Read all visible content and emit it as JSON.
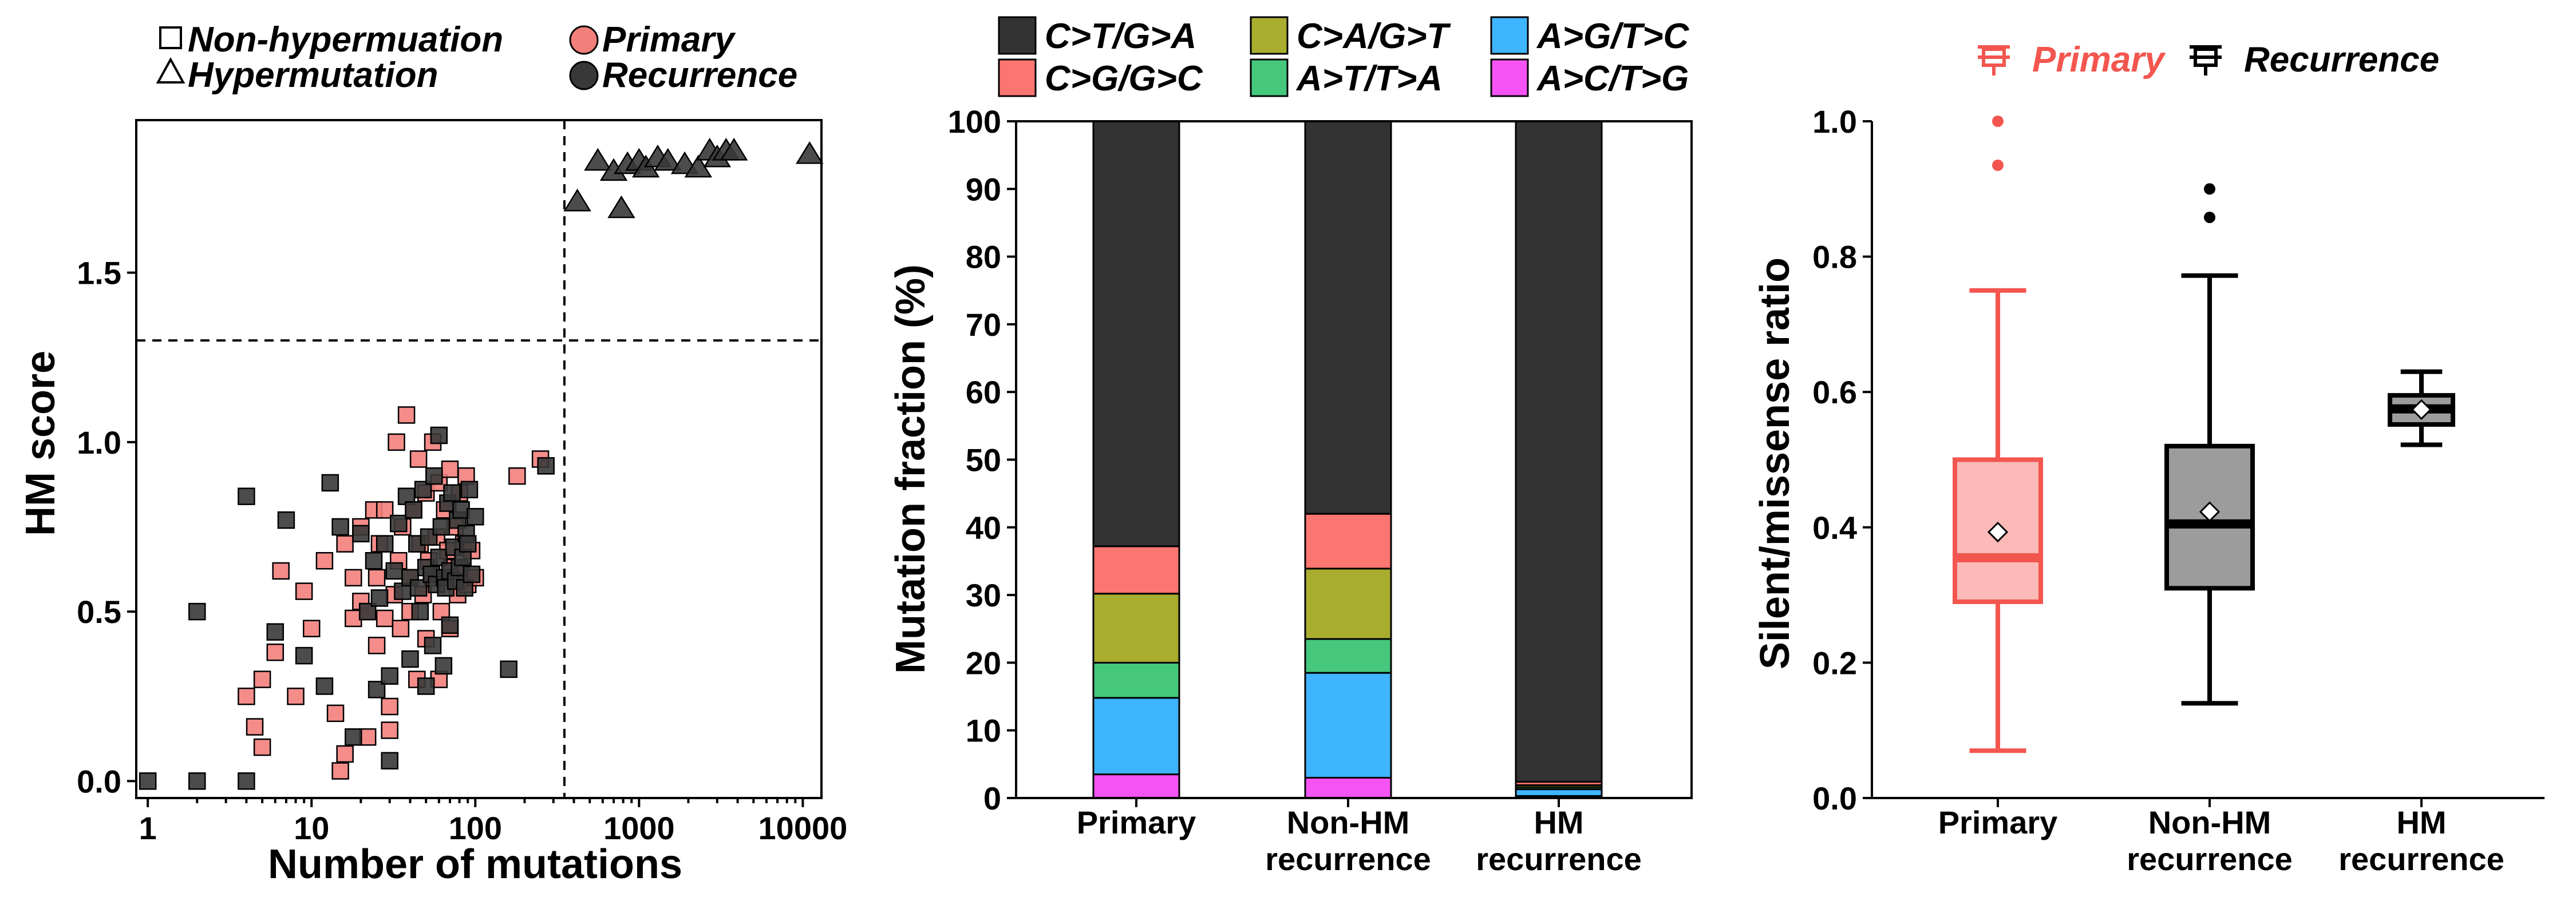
{
  "chart_data": [
    {
      "type": "scatter",
      "title": "",
      "xlabel": "Number of mutations",
      "ylabel": "HM score",
      "xscale": "log",
      "xlim": [
        0.85,
        13000
      ],
      "ylim": [
        -0.05,
        1.95
      ],
      "xticks": [
        1,
        10,
        100,
        1000,
        10000
      ],
      "xtick_labels": [
        "1",
        "10",
        "100",
        "1000",
        "10000"
      ],
      "yticks": [
        0.0,
        0.5,
        1.0,
        1.5
      ],
      "ytick_labels": [
        "0.0",
        "0.5",
        "1.0",
        "1.5"
      ],
      "grid": false,
      "reference_lines": {
        "hm_score_threshold": 1.3,
        "mutation_threshold": 350
      },
      "legend": {
        "placement": "top-left",
        "shape_entries": [
          {
            "label": "Non-hypermuation",
            "shape": "square"
          },
          {
            "label": "Hypermutation",
            "shape": "triangle"
          }
        ],
        "color_entries": [
          {
            "label": "Primary",
            "color": "#f37f7c"
          },
          {
            "label": "Recurrence",
            "color": "#383838"
          }
        ]
      },
      "colors": {
        "Primary": "#f37f7c",
        "Recurrence": "#383838"
      },
      "series": [
        {
          "name": "Primary",
          "shape": "square",
          "points": [
            [
              4,
              0.25
            ],
            [
              4.5,
              0.16
            ],
            [
              5,
              0.1
            ],
            [
              5,
              0.3
            ],
            [
              6,
              0.38
            ],
            [
              6.5,
              0.62
            ],
            [
              8,
              0.25
            ],
            [
              9,
              0.56
            ],
            [
              10,
              0.45
            ],
            [
              12,
              0.65
            ],
            [
              14,
              0.2
            ],
            [
              15,
              0.03
            ],
            [
              16,
              0.08
            ],
            [
              16,
              0.7
            ],
            [
              18,
              0.48
            ],
            [
              18,
              0.6
            ],
            [
              20,
              0.53
            ],
            [
              20,
              0.75
            ],
            [
              22,
              0.13
            ],
            [
              22,
              0.5
            ],
            [
              24,
              0.8
            ],
            [
              25,
              0.4
            ],
            [
              25,
              0.6
            ],
            [
              26,
              0.7
            ],
            [
              28,
              0.48
            ],
            [
              28,
              0.8
            ],
            [
              30,
              0.15
            ],
            [
              30,
              0.22
            ],
            [
              32,
              0.55
            ],
            [
              33,
              1.0
            ],
            [
              34,
              0.65
            ],
            [
              35,
              0.45
            ],
            [
              36,
              0.75
            ],
            [
              38,
              1.08
            ],
            [
              40,
              0.5
            ],
            [
              40,
              0.6
            ],
            [
              42,
              0.8
            ],
            [
              44,
              0.3
            ],
            [
              45,
              0.95
            ],
            [
              46,
              0.7
            ],
            [
              48,
              0.55
            ],
            [
              50,
              0.42
            ],
            [
              50,
              0.85
            ],
            [
              52,
              0.65
            ],
            [
              55,
              0.6
            ],
            [
              55,
              1.0
            ],
            [
              58,
              0.72
            ],
            [
              60,
              0.3
            ],
            [
              60,
              0.88
            ],
            [
              62,
              0.5
            ],
            [
              65,
              0.6
            ],
            [
              65,
              0.8
            ],
            [
              68,
              0.68
            ],
            [
              70,
              0.45
            ],
            [
              70,
              0.92
            ],
            [
              72,
              0.63
            ],
            [
              75,
              0.75
            ],
            [
              78,
              0.55
            ],
            [
              80,
              0.85
            ],
            [
              82,
              0.62
            ],
            [
              85,
              0.7
            ],
            [
              88,
              0.9
            ],
            [
              90,
              0.58
            ],
            [
              95,
              0.68
            ],
            [
              100,
              0.6
            ],
            [
              180,
              0.9
            ],
            [
              250,
              0.95
            ]
          ]
        },
        {
          "name": "Recurrence",
          "shape": "square",
          "points": [
            [
              1,
              0.0
            ],
            [
              2,
              0.0
            ],
            [
              2,
              0.5
            ],
            [
              4,
              0.0
            ],
            [
              4,
              0.84
            ],
            [
              6,
              0.44
            ],
            [
              7,
              0.77
            ],
            [
              9,
              0.37
            ],
            [
              12,
              0.28
            ],
            [
              13,
              0.88
            ],
            [
              15,
              0.75
            ],
            [
              18,
              0.13
            ],
            [
              20,
              0.73
            ],
            [
              22,
              0.5
            ],
            [
              24,
              0.65
            ],
            [
              25,
              0.27
            ],
            [
              26,
              0.54
            ],
            [
              28,
              0.7
            ],
            [
              30,
              0.06
            ],
            [
              30,
              0.31
            ],
            [
              32,
              0.62
            ],
            [
              34,
              0.76
            ],
            [
              36,
              0.56
            ],
            [
              38,
              0.84
            ],
            [
              40,
              0.36
            ],
            [
              40,
              0.6
            ],
            [
              42,
              0.8
            ],
            [
              44,
              0.7
            ],
            [
              45,
              0.57
            ],
            [
              46,
              0.5
            ],
            [
              48,
              0.86
            ],
            [
              50,
              0.28
            ],
            [
              50,
              0.63
            ],
            [
              52,
              0.72
            ],
            [
              54,
              0.61
            ],
            [
              55,
              0.4
            ],
            [
              56,
              0.9
            ],
            [
              58,
              0.58
            ],
            [
              60,
              0.66
            ],
            [
              60,
              1.02
            ],
            [
              62,
              0.75
            ],
            [
              64,
              0.34
            ],
            [
              65,
              0.6
            ],
            [
              66,
              0.57
            ],
            [
              68,
              0.82
            ],
            [
              70,
              0.62
            ],
            [
              70,
              0.46
            ],
            [
              72,
              0.85
            ],
            [
              74,
              0.69
            ],
            [
              76,
              0.59
            ],
            [
              78,
              0.77
            ],
            [
              80,
              0.63
            ],
            [
              82,
              0.8
            ],
            [
              84,
              0.66
            ],
            [
              86,
              0.57
            ],
            [
              88,
              0.73
            ],
            [
              90,
              0.7
            ],
            [
              92,
              0.86
            ],
            [
              95,
              0.61
            ],
            [
              100,
              0.78
            ],
            [
              160,
              0.33
            ],
            [
              270,
              0.93
            ]
          ]
        },
        {
          "name": "Recurrence",
          "shape": "triangle",
          "points": [
            [
              420,
              1.71
            ],
            [
              560,
              1.83
            ],
            [
              700,
              1.8
            ],
            [
              780,
              1.69
            ],
            [
              850,
              1.82
            ],
            [
              1000,
              1.83
            ],
            [
              1100,
              1.81
            ],
            [
              1300,
              1.84
            ],
            [
              1500,
              1.83
            ],
            [
              1900,
              1.82
            ],
            [
              2300,
              1.81
            ],
            [
              2700,
              1.86
            ],
            [
              3000,
              1.84
            ],
            [
              3400,
              1.86
            ],
            [
              3800,
              1.86
            ],
            [
              11000,
              1.85
            ]
          ]
        }
      ]
    },
    {
      "type": "bar",
      "stacked": true,
      "title": "",
      "xlabel": "",
      "ylabel": "Mutation fraction (%)",
      "ylim": [
        0,
        100
      ],
      "yticks": [
        0,
        10,
        20,
        30,
        40,
        50,
        60,
        70,
        80,
        90,
        100
      ],
      "ytick_labels": [
        "0",
        "10",
        "20",
        "30",
        "40",
        "50",
        "60",
        "70",
        "80",
        "90",
        "100"
      ],
      "grid": false,
      "categories": [
        "Primary",
        "Non-HM\nrecurrence",
        "HM\nrecurrence"
      ],
      "category_lines": [
        [
          "Primary"
        ],
        [
          "Non-HM",
          "recurrence"
        ],
        [
          "HM",
          "recurrence"
        ]
      ],
      "legend": {
        "placement": "top",
        "columns": 3
      },
      "series": [
        {
          "name": "A>C/T>G",
          "color": "#f553f3",
          "values": [
            3.5,
            3.0,
            0.3
          ]
        },
        {
          "name": "A>G/T>C",
          "color": "#3fb5ff",
          "values": [
            11.3,
            15.5,
            1.0
          ]
        },
        {
          "name": "A>T/T>A",
          "color": "#45c87c",
          "values": [
            5.2,
            5.0,
            0.3
          ]
        },
        {
          "name": "C>A/G>T",
          "color": "#a9ad2f",
          "values": [
            10.2,
            10.4,
            0.3
          ]
        },
        {
          "name": "C>G/G>C",
          "color": "#fc7671",
          "values": [
            7.0,
            8.1,
            0.5
          ]
        },
        {
          "name": "C>T/G>A",
          "color": "#333333",
          "values": [
            62.8,
            58.0,
            97.6
          ]
        }
      ],
      "legend_order": [
        "C>T/G>A",
        "C>A/G>T",
        "A>G/T>C",
        "C>G/G>C",
        "A>T/T>A",
        "A>C/T>G"
      ]
    },
    {
      "type": "box",
      "title": "",
      "xlabel": "",
      "ylabel": "Silent/missense ratio",
      "ylim": [
        0,
        1.0
      ],
      "yticks": [
        0.0,
        0.2,
        0.4,
        0.6,
        0.8,
        1.0
      ],
      "ytick_labels": [
        "0.0",
        "0.2",
        "0.4",
        "0.6",
        "0.8",
        "1.0"
      ],
      "grid": false,
      "categories": [
        "Primary",
        "Non-HM\nrecurrence",
        "HM\nrecurrence"
      ],
      "category_lines": [
        [
          "Primary"
        ],
        [
          "Non-HM",
          "recurrence"
        ],
        [
          "HM",
          "recurrence"
        ]
      ],
      "legend": {
        "placement": "top",
        "entries": [
          {
            "label": "Primary",
            "color": "#f2564f"
          },
          {
            "label": "Recurrence",
            "color": "#000000"
          }
        ]
      },
      "boxes": [
        {
          "category": "Primary",
          "group": "Primary",
          "stroke": "#f2564f",
          "fill": "#fbbab7",
          "whisker_low": 0.07,
          "q1": 0.29,
          "median": 0.355,
          "q3": 0.5,
          "whisker_high": 0.75,
          "mean": 0.393,
          "outliers": [
            0.935,
            1.0
          ]
        },
        {
          "category": "Non-HM recurrence",
          "group": "Recurrence",
          "stroke": "#000000",
          "fill": "#9c9c9c",
          "whisker_low": 0.14,
          "q1": 0.31,
          "median": 0.405,
          "q3": 0.52,
          "whisker_high": 0.772,
          "mean": 0.423,
          "outliers": [
            0.858,
            0.9
          ]
        },
        {
          "category": "HM recurrence",
          "group": "Recurrence",
          "stroke": "#000000",
          "fill": "#9c9c9c",
          "whisker_low": 0.522,
          "q1": 0.552,
          "median": 0.575,
          "q3": 0.595,
          "whisker_high": 0.63,
          "mean": 0.574,
          "outliers": []
        }
      ]
    }
  ]
}
